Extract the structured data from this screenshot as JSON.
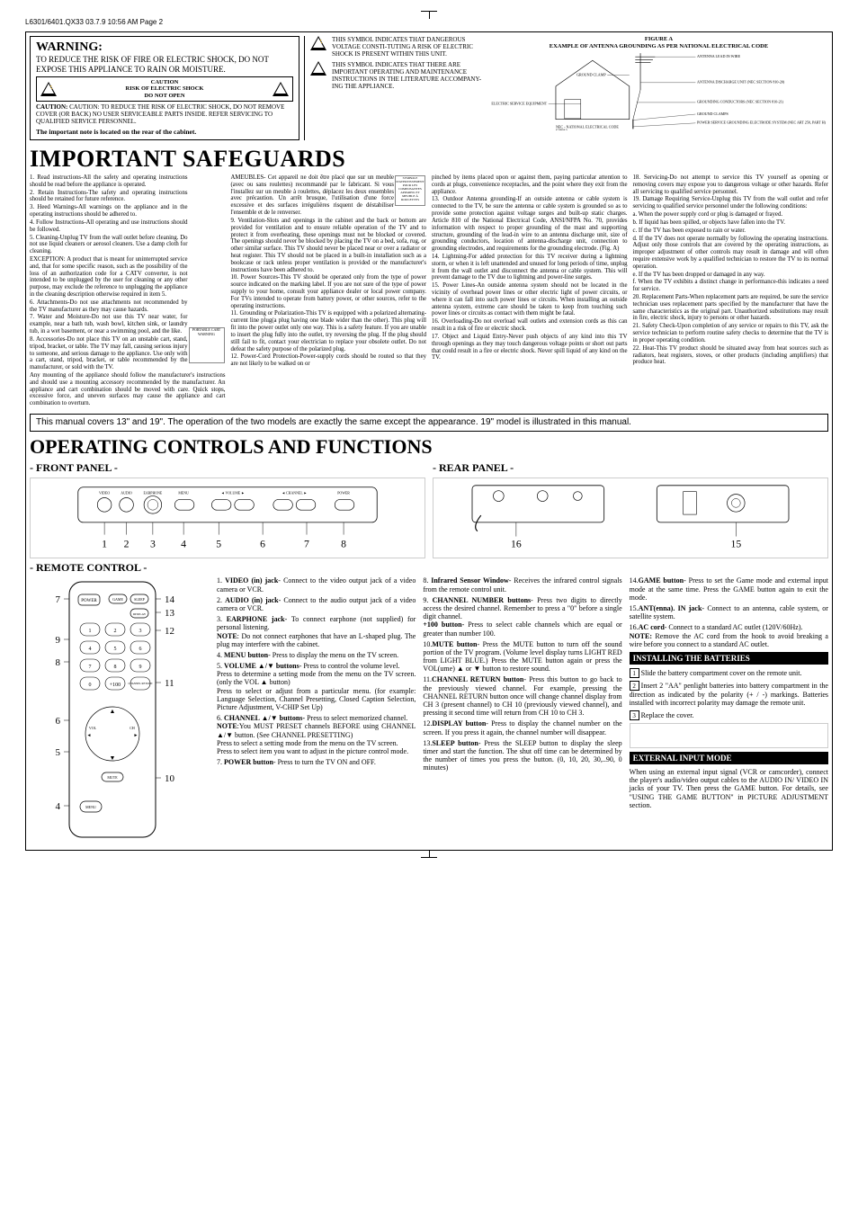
{
  "header_line": "L6301/6401.QX33  03.7.9 10:56 AM  Page 2",
  "warning": {
    "title": "WARNING:",
    "body": "TO REDUCE THE RISK OF FIRE OR ELECTRIC SHOCK, DO NOT EXPOSE THIS APPLIANCE TO RAIN OR MOISTURE.",
    "caution_title": "CAUTION",
    "caution_line1": "RISK OF ELECTRIC SHOCK",
    "caution_line2": "DO NOT OPEN",
    "caution_under": "CAUTION: TO REDUCE THE RISK OF ELECTRIC SHOCK, DO NOT REMOVE COVER (OR BACK) NO USER SERVICEABLE PARTS INSIDE. REFER SERVICING TO QUALIFIED SERVICE PERSONNEL.",
    "important_note": "The important note is located on the rear of the cabinet."
  },
  "symbols": {
    "bolt": "THIS SYMBOL INDICATES THAT DANGEROUS VOLTAGE CONSTI-TUTING A RISK OF ELECTRIC SHOCK IS PRESENT WITHIN THIS UNIT.",
    "bang": "THIS SYMBOL INDICATES THAT THERE ARE IMPORTANT OPERATING AND MAINTENANCE INSTRUCTIONS IN THE LITERATURE ACCOMPANY-ING THE APPLIANCE."
  },
  "figureA": {
    "cap1": "FIGURE A",
    "cap2": "EXAMPLE OF ANTENNA GROUNDING AS PER NATIONAL ELECTRICAL CODE",
    "labels": {
      "a": "ANTENNA LEAD IN WIRE",
      "b": "GROUND CLAMP",
      "c": "ANTENNA DISCHARGE UNIT (NEC SECTION 810-20)",
      "d": "ELECTRIC SERVICE EQUIPMENT",
      "e": "GROUNDING CONDUCTORS (NEC SECTION 810-21)",
      "f": "GROUND CLAMPS",
      "g": "POWER SERVICE GROUNDING ELECTRODE SYSTEM (NEC ART 250, PART H)",
      "nec": "NEC - NATIONAL ELECTRICAL CODE",
      "code": "S2898A"
    }
  },
  "safeguards_title": "IMPORTANT SAFEGUARDS",
  "sg": {
    "c1": [
      "1.  Read instructions-All the safety and operating instructions should be read before the appliance is operated.",
      "2.  Retain Instructions-The safety and operating instructions should be retained for future reference.",
      "3.  Heed Warnings-All warnings on the appliance and in the operating instructions should be adhered to.",
      "4.  Follow Instructions-All operating and use instructions should be followed.",
      "5.  Cleaning-Unplug TV from the wall outlet before cleaning. Do not use liquid cleaners or aerosol cleaners. Use a damp cloth for cleaning.",
      "EXCEPTION: A product that is meant for uninterrupted service and, that for some specific reason, such as the possibility of the loss of an authorization code for a CATV converter, is not intended to be unplugged by the user for cleaning or any other purpose, may exclude the reference to unplugging the appliance in the cleaning description otherwise required in item 5.",
      "6.  Attachments-Do not use attachments not recommended by the TV manufacturer as they may cause hazards.",
      "7.  Water and Moisture-Do not use this TV near water, for example, near a bath tub, wash bowl, kitchen sink, or laundry tub, in a wet basement, or near a swimming pool, and the like.",
      "8.  Accessories-Do not place this TV on an unstable cart, stand, tripod, bracket, or table. The TV may fall, causing serious injury to someone, and serious damage to the appliance. Use only with a cart, stand, tripod, bracket, or table recommended by the manufacturer, or sold with the TV.",
      "Any mounting of the appliance should follow the manufacturer's instructions and should use a mounting accessory recommended by the manufacturer. An appliance and cart combination should be moved with care. Quick stops, excessive force, and uneven surfaces may cause the appliance and cart combination to overturn."
    ],
    "c1_cart": "PORTABLE CART WARNING",
    "c2": [
      "AMEUBLES- Cet appareil ne doit être placé que sur un meuble (avec ou sans roulettes) recommandé par le fabricant. Si vous l'installez sur un meuble à roulettes, déplacez les deux ensembles avec précaution. Un arrêt brusque, l'utilisation d'une force excessive et des surfaces irrégulières risquent de déstabiliser l'ensemble et de le renverser.",
      "9.  Ventilation-Slots and openings in the cabinet and the back or bottom are provided for ventilation and to ensure reliable operation of the TV and to protect it from overheating, these openings must not be blocked or covered. The openings should never be blocked by placing the TV on a bed, sofa, rug, or other similar surface. This TV should never be placed near or over a radiator or heat register. This TV should not be placed in a built-in installation such as a bookcase or rack unless proper ventilation is provided or the manufacturer's instructions have been adhered to.",
      "10. Power Sources-This TV should be operated only from the type of power source indicated on the marking label. If you are not sure of the type of power supply to your home, consult your appliance dealer or local power company. For TVs intended to operate from battery power, or other sources, refer to the operating instructions.",
      "11. Grounding or Polarization-This TV is equipped with a polarized alternating-current line plug(a plug having one blade wider than the other). This plug will fit into the power outlet only one way. This is a safety feature. If you are unable to insert the plug fully into the outlet, try reversing the plug. If the plug should still fail to fit, contact your electrician to replace your obsolete outlet. Do not defeat the safety purpose of the polarized plug.",
      "12. Power-Cord Protection-Power-supply cords should be routed so that they are not likely to be walked on or"
    ],
    "c2_fr": "SYMBOLE D'AVERTISSEMENT POUR LES COMPOSANTES APPAREIL ET MEUBLE À ROULETTES",
    "c3": [
      "pinched by items placed upon or against them, paying particular attention to cords at plugs, convenience receptacles, and the point where they exit from the appliance.",
      "13. Outdoor Antenna grounding-If an outside antenna or cable system is connected to the TV, be sure the antenna or cable system is grounded so as to provide some protection against voltage surges and built-up static charges. Article 810 of the National Electrical Code, ANSI/NFPA No. 70, provides information with respect to proper grounding of the mast and supporting structure, grounding of the lead-in wire to an antenna discharge unit, size of grounding conductors, location of antenna-discharge unit, connection to grounding electrodes, and requirements for the grounding electrode. (Fig. A)",
      "14. Lightning-For added protection for this TV receiver during a lightning storm, or when it is left unattended and unused for long periods of time, unplug it from the wall outlet and disconnect the antenna or cable system. This will prevent damage to the TV due to lightning and power-line surges.",
      "15. Power Lines-An outside antenna system should not be located in the vicinity of overhead power lines or other electric light of power circuits, or where it can fall into such power lines or circuits. When installing an outside antenna system, extreme care should be taken to keep from touching such power lines or circuits as contact with them might be fatal.",
      "16. Overloading-Do not overload wall outlets and extension cords as this can result in a risk of fire or electric shock.",
      "17. Object and Liquid Entry-Never push objects of any kind into this TV through openings as they may touch dangerous voltage points or short out parts that could result in a fire or electric shock. Never spill liquid of any kind on the TV."
    ],
    "c4": [
      "18. Servicing-Do not attempt to service this TV yourself as opening or removing covers may expose you to dangerous voltage or other hazards. Refer all servicing to qualified service personnel.",
      "19. Damage Requiring Service-Unplug this TV from the wall outlet and refer servicing to qualified service personnel under the following conditions:",
      "a. When the power supply cord or plug is damaged or frayed.",
      "b. If liquid has been spilled, or objects have fallen into the TV.",
      "c. If the TV has been exposed to rain or water.",
      "d. If the TV does not operate normally by following the operating instructions. Adjust only those controls that are covered by the operating instructions, as improper adjustment of other controls may result in damage and will often require extensive work by a qualified technician to restore the TV to its normal operation.",
      "e. If the TV has been dropped or damaged in any way.",
      "f. When the TV exhibits a distinct change in performance-this indicates a need for service.",
      "20. Replacement Parts-When replacement parts are required, be sure the service technician uses replacement parts specified by the manufacturer that have the same characteristics as the original part. Unauthorized substitutions may result in fire, electric shock, injury to persons or other hazards.",
      "21. Safety Check-Upon completion of any service or repairs to this TV, ask the service technician to perform routine safety checks to determine that the TV is in proper operating condition.",
      "22. Heat-This TV product should be situated away from heat sources such as radiators, heat registers, stoves, or other products (including amplifiers) that produce heat."
    ]
  },
  "model_note": "This manual covers 13\" and 19\". The operation of the two models are exactly the same except the appearance. 19\" model is illustrated in this manual.",
  "ops_title": "OPERATING CONTROLS AND FUNCTIONS",
  "front_panel": "- FRONT PANEL -",
  "rear_panel": "- REAR PANEL -",
  "remote": "- REMOTE CONTROL -",
  "front_labels": [
    "VIDEO",
    "AUDIO",
    "EARPHONE",
    "MENU",
    "◄ VOLUME ►",
    "◄ CHANNEL ►",
    "POWER"
  ],
  "front_nums": [
    "1",
    "2",
    "3",
    "4",
    "5",
    "6",
    "7",
    "8"
  ],
  "rear_nums": [
    "16",
    "15"
  ],
  "remote_btn": {
    "power": "POWER",
    "game": "GAME",
    "sleep": "SLEEP",
    "display": "DISPLAY",
    "chret": "CHANNEL RETURN",
    "vol": "VOL",
    "ch": "CH",
    "mute": "MUTE",
    "menu": "MENU"
  },
  "remote_nums": [
    "14",
    "13",
    "12",
    "11",
    "10",
    "9",
    "8",
    "7",
    "6",
    "5",
    "4"
  ],
  "funcs": {
    "c1": [
      "1. <b>VIDEO (in) jack</b>- Connect to the video output jack of a video camera or VCR.",
      "2. <b>AUDIO (in) jack</b>- Connect to the audio output jack of a video camera or VCR.",
      "3. <b>EARPHONE jack</b>- To connect earphone (not supplied) for personal listening.<br><b>NOTE</b>: Do not connect earphones that have an L-shaped plug. The plug may interfere with the cabinet.",
      "4. <b>MENU button</b>- Press to display the menu on the TV screen.",
      "5. <b>VOLUME ▲/▼ buttons</b>- Press to control the volume level.<br>Press to determine a setting mode from the menu on the TV screen. (only the VOL ▲ button)<br>Press to select or adjust from a particular menu. (for example: Language Selection, Channel Presetting, Closed Caption Selection, Picture Adjustment, V-CHIP Set Up)",
      "6. <b>CHANNEL ▲/▼ buttons-</b> Press to select memorized channel.<br><b>NOTE</b>:You MUST PRESET channels BEFORE using CHANNEL ▲/▼ button. (See CHANNEL PRESETTING)<br>Press to select a setting mode from the menu on the TV screen.<br>Press to select item you want to adjust in the picture control mode.",
      "7. <b>POWER button</b>- Press to turn the TV ON and OFF."
    ],
    "c2": [
      "8. <b>Infrared Sensor Window</b>- Receives the infrared control signals from the remote control unit.",
      "9. <b>CHANNEL NUMBER buttons</b>- Press two digits to directly access the desired channel. Remember to press a \"0\" before a single digit channel.<br><b>+100 button</b>- Press to select cable channels which are equal or greater than number 100.",
      "10.<b>MUTE button</b>- Press the MUTE button to turn off the sound portion of the TV program. (Volume level display turns LIGHT RED from LIGHT BLUE.) Press the MUTE button again or press the VOL(ume) ▲ or ▼ button to restore sound.",
      "11.<b>CHANNEL RETURN button</b>- Press this button to go back to the previously viewed channel. For example, pressing the CHANNEL RETURN button once will change channel display from CH 3 (present channel) to CH 10 (previously viewed channel), and pressing it second time will return from CH 10 to CH 3.",
      "12.<b>DISPLAY button</b>- Press to display the channel number on the screen. If you press it again, the channel number will disappear.",
      "13.<b>SLEEP button</b>- Press the SLEEP button to display the sleep timer and start the function. The shut off time can be determined by the number of times you press the button. (0, 10, 20, 30,..90, 0 minutes)"
    ],
    "c3": [
      "14.<b>GAME button</b>- Press to set the Game mode and external input mode at the same time. Press the GAME button again to exit the mode.",
      "15.<b>ANT(enna). IN jack</b>- Connect to an antenna, cable system, or satellite system.",
      "16.<b>AC cord</b>- Connect to a standard AC outlet (120V/60Hz).<br><b>NOTE:</b> Remove the AC cord from the hook to avoid breaking a wire before you connect to a standard AC outlet."
    ]
  },
  "install_title": "INSTALLING THE BATTERIES",
  "install": [
    "Slide the battery compartment cover on the remote unit.",
    "Insert 2 \"AA\" penlight batteries into battery compartment in the direction as indicated by the polarity (+ / -) markings. Batteries installed with incorrect polarity may damage the remote unit.",
    "Replace the cover."
  ],
  "ext_title": "EXTERNAL INPUT MODE",
  "ext": "When using an external input signal (VCR or camcorder), connect the player's audio/video output cables to the AUDIO IN/ VIDEO IN jacks of your TV. Then press the GAME button. For details, see \"USING THE GAME BUTTON\" in PICTURE ADJUSTMENT section."
}
